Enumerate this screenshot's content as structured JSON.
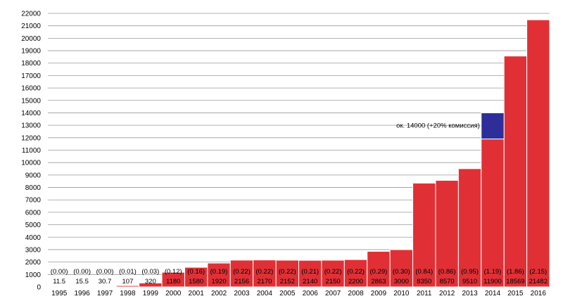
{
  "chart_data": {
    "type": "bar",
    "categories": [
      "1995",
      "1996",
      "1997",
      "1998",
      "1999",
      "2000",
      "2001",
      "2002",
      "2003",
      "2004",
      "2005",
      "2006",
      "2007",
      "2008",
      "2009",
      "2010",
      "2011",
      "2012",
      "2013",
      "2014",
      "2015",
      "2016"
    ],
    "values": [
      11.5,
      15.5,
      30.7,
      107,
      320,
      1180,
      1580,
      1920,
      2156,
      2170,
      2152,
      2140,
      2150,
      2200,
      2863,
      3000,
      8350,
      8570,
      9510,
      11900,
      18569,
      21482
    ],
    "value_labels": [
      "11.5",
      "15.5",
      "30.7",
      "107",
      "320",
      "1180",
      "1580",
      "1920",
      "2156",
      "2170",
      "2152",
      "2140",
      "2150",
      "2200",
      "2863",
      "3000",
      "8350",
      "8570",
      "9510",
      "11900",
      "18569",
      "21482"
    ],
    "secondary_labels": [
      "(0.00)",
      "(0.00)",
      "(0.00)",
      "(0.01)",
      "(0.03)",
      "(0.12)",
      "(0.16)",
      "(0.19)",
      "(0.22)",
      "(0.22)",
      "(0.22)",
      "(0.21)",
      "(0.22)",
      "(0.22)",
      "(0.29)",
      "(0.30)",
      "(0.84)",
      "(0.86)",
      "(0.95)",
      "(1.19)",
      "(1.86)",
      "(2.15)"
    ],
    "stacked_extra": {
      "category": "2014",
      "base": 11900,
      "top": 14000,
      "color": "#2e2e9a"
    },
    "annotation": "ок. 14000 (+20% комиссия)",
    "ylim": [
      0,
      22000
    ],
    "yticks": [
      0,
      1000,
      2000,
      3000,
      4000,
      5000,
      6000,
      7000,
      8000,
      9000,
      10000,
      11000,
      12000,
      13000,
      14000,
      15000,
      16000,
      17000,
      18000,
      19000,
      20000,
      21000,
      22000
    ],
    "grid": true,
    "bar_color": "#e03036",
    "title": "",
    "xlabel": "",
    "ylabel": ""
  }
}
